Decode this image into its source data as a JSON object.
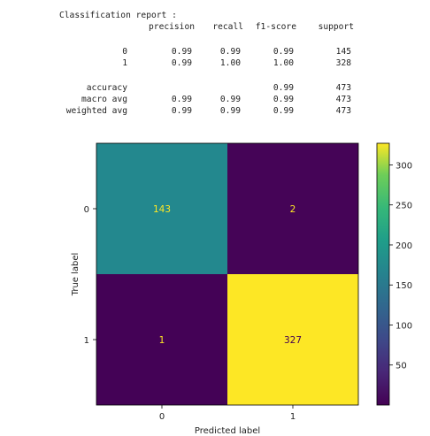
{
  "report": {
    "title": "Classification report :",
    "headers": [
      "precision",
      "recall",
      "f1-score",
      "support"
    ],
    "rows": [
      {
        "label": "0",
        "precision": "0.99",
        "recall": "0.99",
        "f1": "0.99",
        "support": "145"
      },
      {
        "label": "1",
        "precision": "0.99",
        "recall": "1.00",
        "f1": "1.00",
        "support": "328"
      },
      {
        "label": "accuracy",
        "precision": "",
        "recall": "",
        "f1": "0.99",
        "support": "473"
      },
      {
        "label": "macro avg",
        "precision": "0.99",
        "recall": "0.99",
        "f1": "0.99",
        "support": "473"
      },
      {
        "label": "weighted avg",
        "precision": "0.99",
        "recall": "0.99",
        "f1": "0.99",
        "support": "473"
      }
    ]
  },
  "chart_data": {
    "type": "heatmap",
    "title": "",
    "xlabel": "Predicted label",
    "ylabel": "True label",
    "x_categories": [
      "0",
      "1"
    ],
    "y_categories": [
      "0",
      "1"
    ],
    "matrix": [
      [
        143,
        2
      ],
      [
        1,
        327
      ]
    ],
    "colormap": "viridis",
    "colorbar": {
      "min": 0,
      "max": 327,
      "ticks": [
        50,
        100,
        150,
        200,
        250,
        300
      ]
    },
    "colors": {
      "cell_0_0": "#23888e",
      "cell_0_1": "#450457",
      "cell_1_0": "#440256",
      "cell_1_1": "#fde725",
      "text_on_dark": "#fde725",
      "text_on_light": "#440154"
    }
  }
}
